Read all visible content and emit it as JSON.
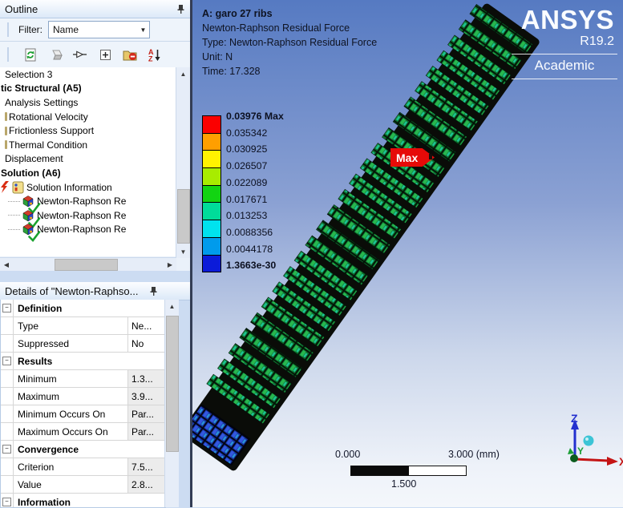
{
  "outline": {
    "title": "Outline",
    "filter": {
      "label": "Filter:",
      "value": "Name"
    },
    "toolbar_icons": [
      "refresh-tree-icon",
      "worksheet-icon",
      "probe-icon",
      "expand-all-icon",
      "suppress-folder-icon",
      "sort-az-icon"
    ],
    "tree": [
      {
        "label": "Selection 3",
        "indent": 6
      },
      {
        "label": "tic Structural (A5)",
        "bold": true,
        "indent": 1
      },
      {
        "label": "Analysis Settings",
        "indent": 6
      },
      {
        "label": "Rotational Velocity",
        "indent": 6,
        "sliver": true
      },
      {
        "label": "Frictionless Support",
        "indent": 6,
        "sliver": true
      },
      {
        "label": "Thermal Condition",
        "indent": 6,
        "sliver": true
      },
      {
        "label": "Displacement",
        "indent": 6
      },
      {
        "label": "Solution (A6)",
        "bold": true,
        "indent": 1
      },
      {
        "label": "Solution Information",
        "indent": 1,
        "icon": "solution-info"
      },
      {
        "label": "Newton-Raphson Re",
        "indent": 10,
        "icon": "result"
      },
      {
        "label": "Newton-Raphson Re",
        "indent": 10,
        "icon": "result"
      },
      {
        "label": "Newton-Raphson Re",
        "indent": 10,
        "icon": "result"
      }
    ]
  },
  "details": {
    "title": "Details of \"Newton-Raphso...",
    "rows": [
      {
        "type": "group",
        "label": "Definition"
      },
      {
        "type": "prop",
        "name": "Type",
        "value": "Ne...",
        "ro": false
      },
      {
        "type": "prop",
        "name": "Suppressed",
        "value": "No",
        "ro": false
      },
      {
        "type": "group",
        "label": "Results"
      },
      {
        "type": "prop",
        "name": "Minimum",
        "value": "1.3...",
        "ro": true
      },
      {
        "type": "prop",
        "name": "Maximum",
        "value": "3.9...",
        "ro": true
      },
      {
        "type": "prop",
        "name": "Minimum Occurs On",
        "value": "Par...",
        "ro": true
      },
      {
        "type": "prop",
        "name": "Maximum Occurs On",
        "value": "Par...",
        "ro": true
      },
      {
        "type": "group",
        "label": "Convergence"
      },
      {
        "type": "prop",
        "name": "Criterion",
        "value": "7.5...",
        "ro": true
      },
      {
        "type": "prop",
        "name": "Value",
        "value": "2.8...",
        "ro": true
      },
      {
        "type": "group",
        "label": "Information"
      }
    ]
  },
  "viewport": {
    "annotation": {
      "line1": "A: garo 27 ribs",
      "line2": "Newton-Raphson Residual Force",
      "line3": "Type: Newton-Raphson Residual Force",
      "line4": "Unit: N",
      "line5": "Time: 17.328"
    },
    "logo": {
      "brand": "ANSYS",
      "release": "R19.2",
      "edition": "Academic"
    },
    "legend": {
      "labels": [
        "0.03976 Max",
        "0.035342",
        "0.030925",
        "0.026507",
        "0.022089",
        "0.017671",
        "0.013253",
        "0.0088356",
        "0.0044178",
        "1.3663e-30"
      ],
      "colors": [
        "#fb0000",
        "#ff9f00",
        "#fff200",
        "#a8ec00",
        "#12d412",
        "#00dc9a",
        "#00e2ee",
        "#009bec",
        "#0b1bd9"
      ]
    },
    "max_label": "Max",
    "scale_bar": {
      "min": "0.000",
      "mid": "1.500",
      "max": "3.000 (mm)"
    },
    "triad": {
      "x": "X",
      "y": "Y",
      "z": "Z"
    }
  }
}
